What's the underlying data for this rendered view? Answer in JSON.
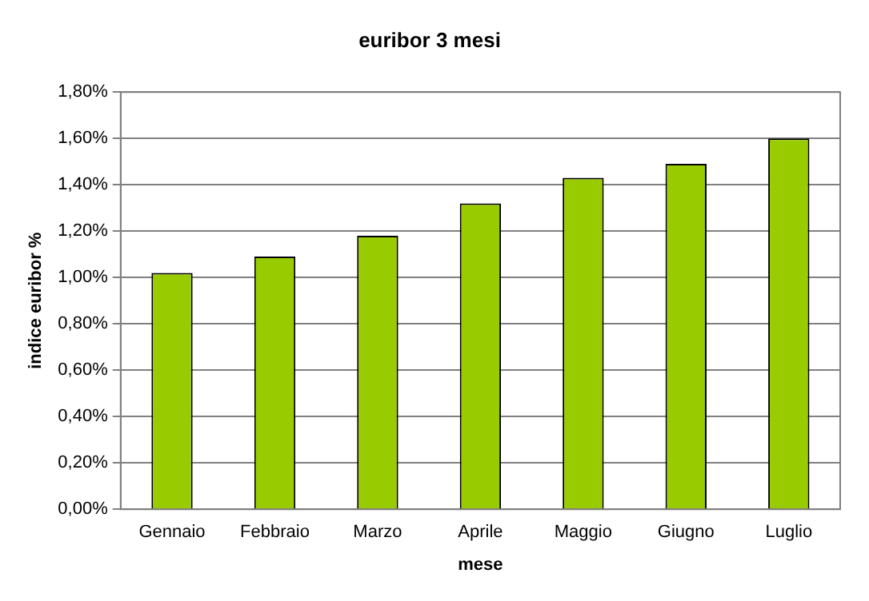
{
  "chart_data": {
    "type": "bar",
    "title": "euribor 3 mesi",
    "xlabel": "mese",
    "ylabel": "indice euribor %",
    "categories": [
      "Gennaio",
      "Febbraio",
      "Marzo",
      "Aprile",
      "Maggio",
      "Giugno",
      "Luglio"
    ],
    "values": [
      1.02,
      1.09,
      1.18,
      1.32,
      1.43,
      1.49,
      1.6
    ],
    "color": "#99cc00",
    "ylim": [
      0,
      1.8
    ],
    "yticks": [
      {
        "value": 0,
        "label": "0,00%"
      },
      {
        "value": 0.2,
        "label": "0,20%"
      },
      {
        "value": 0.4,
        "label": "0,40%"
      },
      {
        "value": 0.6,
        "label": "0,60%"
      },
      {
        "value": 0.8,
        "label": "0,80%"
      },
      {
        "value": 1,
        "label": "1,00%"
      },
      {
        "value": 1.2,
        "label": "1,20%"
      },
      {
        "value": 1.4,
        "label": "1,40%"
      },
      {
        "value": 1.6,
        "label": "1,60%"
      },
      {
        "value": 1.8,
        "label": "1,80%"
      }
    ],
    "grid": "y",
    "legend": false
  }
}
